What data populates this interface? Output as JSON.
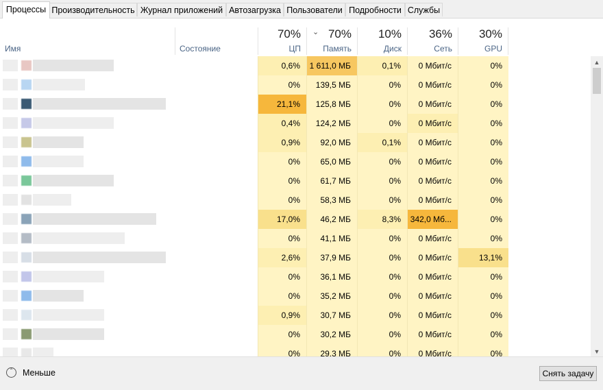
{
  "tabs": [
    "Процессы",
    "Производительность",
    "Журнал приложений",
    "Автозагрузка",
    "Пользователи",
    "Подробности",
    "Службы"
  ],
  "active_tab": 0,
  "header": {
    "name_label": "Имя",
    "state_label": "Состояние",
    "cpu": {
      "pct": "70%",
      "label": "ЦП"
    },
    "mem": {
      "pct": "70%",
      "label": "Память"
    },
    "disk": {
      "pct": "10%",
      "label": "Диск"
    },
    "net": {
      "pct": "36%",
      "label": "Сеть"
    },
    "gpu": {
      "pct": "30%",
      "label": "GPU"
    }
  },
  "heat_colors": {
    "base": "#fff4c4",
    "light": "#fdefb2",
    "mid": "#f9e08c",
    "high": "#f7c760",
    "strong": "#f6b73c"
  },
  "rows": [
    {
      "cpu": "0,6%",
      "mem": "1 611,0 МБ",
      "disk": "0,1%",
      "net": "0 Мбит/с",
      "gpu": "0%",
      "icon": "#e8c7c3",
      "h": {
        "cpu": "light",
        "mem": "high",
        "disk": "light"
      }
    },
    {
      "cpu": "0%",
      "mem": "139,5 МБ",
      "disk": "0%",
      "net": "0 Мбит/с",
      "gpu": "0%",
      "icon": "#b8d6f2",
      "h": {}
    },
    {
      "cpu": "21,1%",
      "mem": "125,8 МБ",
      "disk": "0%",
      "net": "0 Мбит/с",
      "gpu": "0%",
      "icon": "#3a5a74",
      "h": {
        "cpu": "strong"
      }
    },
    {
      "cpu": "0,4%",
      "mem": "124,2 МБ",
      "disk": "0%",
      "net": "0 Мбит/с",
      "gpu": "0%",
      "icon": "#c6c9e8",
      "h": {
        "cpu": "light",
        "net": "light"
      }
    },
    {
      "cpu": "0,9%",
      "mem": "92,0 МБ",
      "disk": "0,1%",
      "net": "0 Мбит/с",
      "gpu": "0%",
      "icon": "#c9c48f",
      "h": {
        "cpu": "light",
        "disk": "light"
      }
    },
    {
      "cpu": "0%",
      "mem": "65,0 МБ",
      "disk": "0%",
      "net": "0 Мбит/с",
      "gpu": "0%",
      "icon": "#8fbbeb",
      "h": {}
    },
    {
      "cpu": "0%",
      "mem": "61,7 МБ",
      "disk": "0%",
      "net": "0 Мбит/с",
      "gpu": "0%",
      "icon": "#7ac79a",
      "h": {}
    },
    {
      "cpu": "0%",
      "mem": "58,3 МБ",
      "disk": "0%",
      "net": "0 Мбит/с",
      "gpu": "0%",
      "icon": "#e2e2e2",
      "h": {}
    },
    {
      "cpu": "17,0%",
      "mem": "46,2 МБ",
      "disk": "8,3%",
      "net": "342,0 Мб...",
      "gpu": "0%",
      "icon": "#8aa3b8",
      "h": {
        "cpu": "mid",
        "disk": "light",
        "net": "strong"
      }
    },
    {
      "cpu": "0%",
      "mem": "41,1 МБ",
      "disk": "0%",
      "net": "0 Мбит/с",
      "gpu": "0%",
      "icon": "#b4bcc6",
      "h": {}
    },
    {
      "cpu": "2,6%",
      "mem": "37,9 МБ",
      "disk": "0%",
      "net": "0 Мбит/с",
      "gpu": "13,1%",
      "icon": "#d7dee6",
      "h": {
        "cpu": "light",
        "gpu": "mid"
      }
    },
    {
      "cpu": "0%",
      "mem": "36,1 МБ",
      "disk": "0%",
      "net": "0 Мбит/с",
      "gpu": "0%",
      "icon": "#c2c6ea",
      "h": {}
    },
    {
      "cpu": "0%",
      "mem": "35,2 МБ",
      "disk": "0%",
      "net": "0 Мбит/с",
      "gpu": "0%",
      "icon": "#8fbbeb",
      "h": {}
    },
    {
      "cpu": "0,9%",
      "mem": "30,7 МБ",
      "disk": "0%",
      "net": "0 Мбит/с",
      "gpu": "0%",
      "icon": "#dde6ee",
      "h": {
        "cpu": "light"
      }
    },
    {
      "cpu": "0%",
      "mem": "30,2 МБ",
      "disk": "0%",
      "net": "0 Мбит/с",
      "gpu": "0%",
      "icon": "#8a9a72",
      "h": {}
    },
    {
      "cpu": "0%",
      "mem": "29,3 МБ",
      "disk": "0%",
      "net": "0 Мбит/с",
      "gpu": "0%",
      "icon": "#e8e8e8",
      "h": {}
    }
  ],
  "footer": {
    "less_label": "Меньше",
    "end_task_label": "Снять задачу"
  }
}
